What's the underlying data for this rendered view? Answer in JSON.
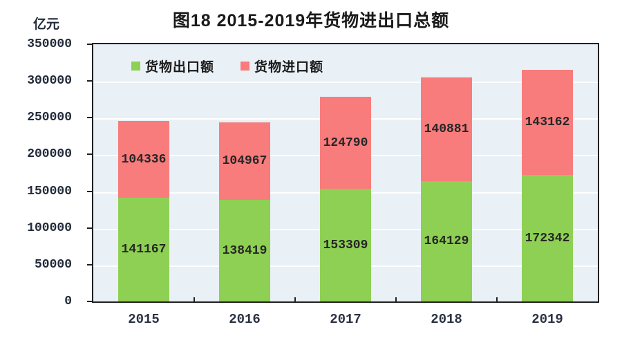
{
  "page": {
    "title": "图18  2015-2019年货物进出口总额",
    "unit_label": "亿元"
  },
  "colors": {
    "export_green": "#8ed053",
    "import_red": "#f87c7c",
    "plot_background": "#e9f0f6",
    "gridline": "#ffffff",
    "axis_frame": "#1f1f1f",
    "text_dark": "#1a1a1a"
  },
  "chart_data": {
    "type": "bar",
    "stacked": true,
    "title": "图18  2015-2019年货物进出口总额",
    "ylabel": "亿元",
    "categories": [
      "2015",
      "2016",
      "2017",
      "2018",
      "2019"
    ],
    "series": [
      {
        "name": "货物出口额",
        "color": "#8ed053",
        "values": [
          141167,
          138419,
          153309,
          164129,
          172342
        ]
      },
      {
        "name": "货物进口额",
        "color": "#f87c7c",
        "values": [
          104336,
          104967,
          124790,
          140881,
          143162
        ]
      }
    ],
    "ylim": [
      0,
      350000
    ],
    "ytick_step": 50000,
    "grid": true,
    "legend_position": "top-left-inside",
    "data_labels": true
  }
}
